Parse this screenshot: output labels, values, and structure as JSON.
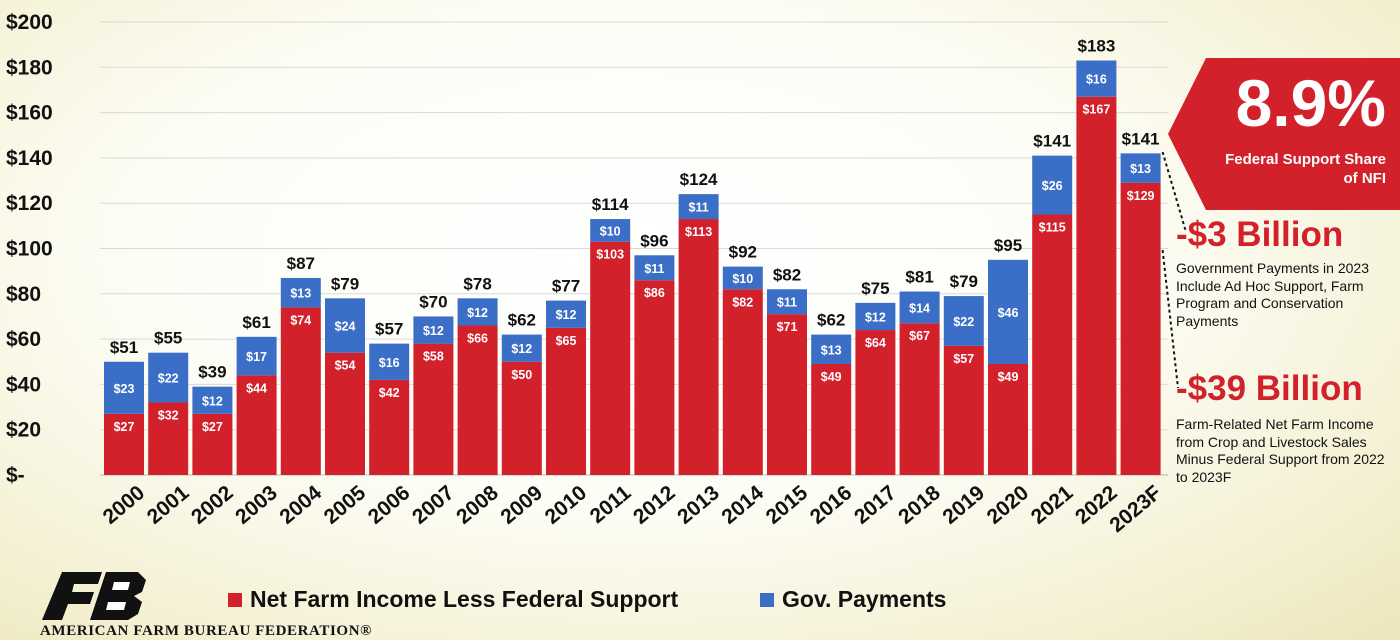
{
  "chart_data": {
    "type": "bar",
    "stacked": true,
    "categories": [
      "2000",
      "2001",
      "2002",
      "2003",
      "2004",
      "2005",
      "2006",
      "2007",
      "2008",
      "2009",
      "2010",
      "2011",
      "2012",
      "2013",
      "2014",
      "2015",
      "2016",
      "2017",
      "2018",
      "2019",
      "2020",
      "2021",
      "2022",
      "2023F"
    ],
    "series": [
      {
        "name": "Net Farm Income Less Federal Support",
        "color": "#d3212c",
        "values": [
          27,
          32,
          27,
          44,
          74,
          54,
          42,
          58,
          66,
          50,
          65,
          103,
          86,
          113,
          82,
          71,
          49,
          64,
          67,
          57,
          49,
          115,
          167,
          129
        ]
      },
      {
        "name": "Gov. Payments",
        "color": "#3b6ec6",
        "values": [
          23,
          22,
          12,
          17,
          13,
          24,
          16,
          12,
          12,
          12,
          12,
          10,
          11,
          11,
          10,
          11,
          13,
          12,
          14,
          22,
          46,
          26,
          16,
          13
        ]
      }
    ],
    "totals": [
      51,
      55,
      39,
      61,
      87,
      79,
      57,
      70,
      78,
      62,
      77,
      114,
      96,
      124,
      92,
      82,
      62,
      75,
      81,
      79,
      95,
      141,
      183,
      141
    ],
    "value_prefix": "$",
    "y_ticks": [
      "$-",
      "$20",
      "$40",
      "$60",
      "$80",
      "$100",
      "$120",
      "$140",
      "$160",
      "$180",
      "$200"
    ],
    "ylim": [
      0,
      200
    ],
    "grid": true,
    "legend_position": "bottom"
  },
  "callout": {
    "percent": "8.9%",
    "text": "Federal Support Share of NFI"
  },
  "notes": [
    {
      "heading": "-$3 Billion",
      "body": "Government Payments in 2023 Include Ad Hoc Support, Farm Program and Conservation Payments"
    },
    {
      "heading": "-$39 Billion",
      "body": "Farm-Related Net Farm Income from Crop and Livestock Sales Minus Federal Support from 2022 to 2023F"
    }
  ],
  "legend": {
    "items": [
      {
        "label": "Net Farm Income Less Federal Support",
        "color": "#d3212c"
      },
      {
        "label": "Gov. Payments",
        "color": "#3b6ec6"
      }
    ]
  },
  "organization": "AMERICAN FARM BUREAU FEDERATION®",
  "logo_text": "FB",
  "colors": {
    "red": "#d3212c",
    "blue": "#3b6ec6",
    "dark_red": "#b3141f"
  }
}
